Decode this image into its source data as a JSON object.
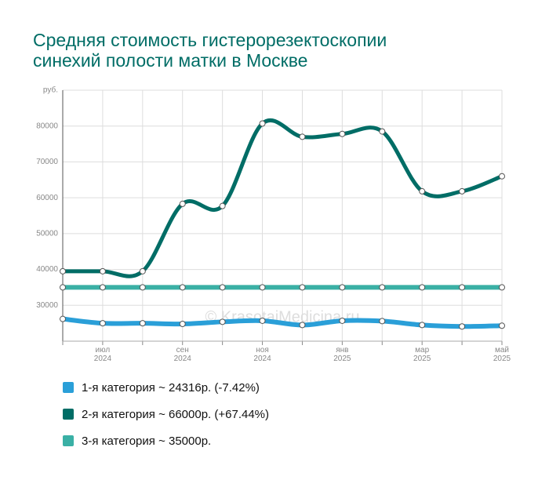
{
  "chart_data": {
    "type": "line",
    "title": "Средняя стоимость гистерорезектоскопии синехий полости матки в Москве",
    "watermark": "© KrasotaiMedicina.ru",
    "categories": [
      null,
      "июл 2024",
      null,
      "сен 2024",
      null,
      "ноя 2024",
      null,
      "янв 2025",
      null,
      "мар 2025",
      null,
      "май 2025"
    ],
    "ylim": [
      20000,
      90000
    ],
    "yticks": [
      30000,
      40000,
      50000,
      60000,
      70000,
      80000,
      {
        "value": 90000,
        "label": "руб."
      }
    ],
    "grid": true,
    "legend": "bottom-left",
    "series": [
      {
        "name": "1-я категория ~ 24316р. (-7.42%)",
        "color": "#2a9fd8",
        "values": [
          26200,
          25000,
          25000,
          24800,
          25400,
          25700,
          24500,
          25700,
          25600,
          24500,
          24100,
          24316
        ]
      },
      {
        "name": "2-я категория ~ 66000р. (+67.44%)",
        "color": "#006d66",
        "values": [
          39500,
          39500,
          39500,
          58300,
          57700,
          80700,
          77000,
          77800,
          78500,
          61800,
          61800,
          66000
        ]
      },
      {
        "name": "3-я категория ~ 35000р.",
        "color": "#3ab0a5",
        "values": [
          35000,
          35000,
          35000,
          35000,
          35000,
          35000,
          35000,
          35000,
          35000,
          35000,
          35000,
          35000
        ]
      }
    ]
  }
}
